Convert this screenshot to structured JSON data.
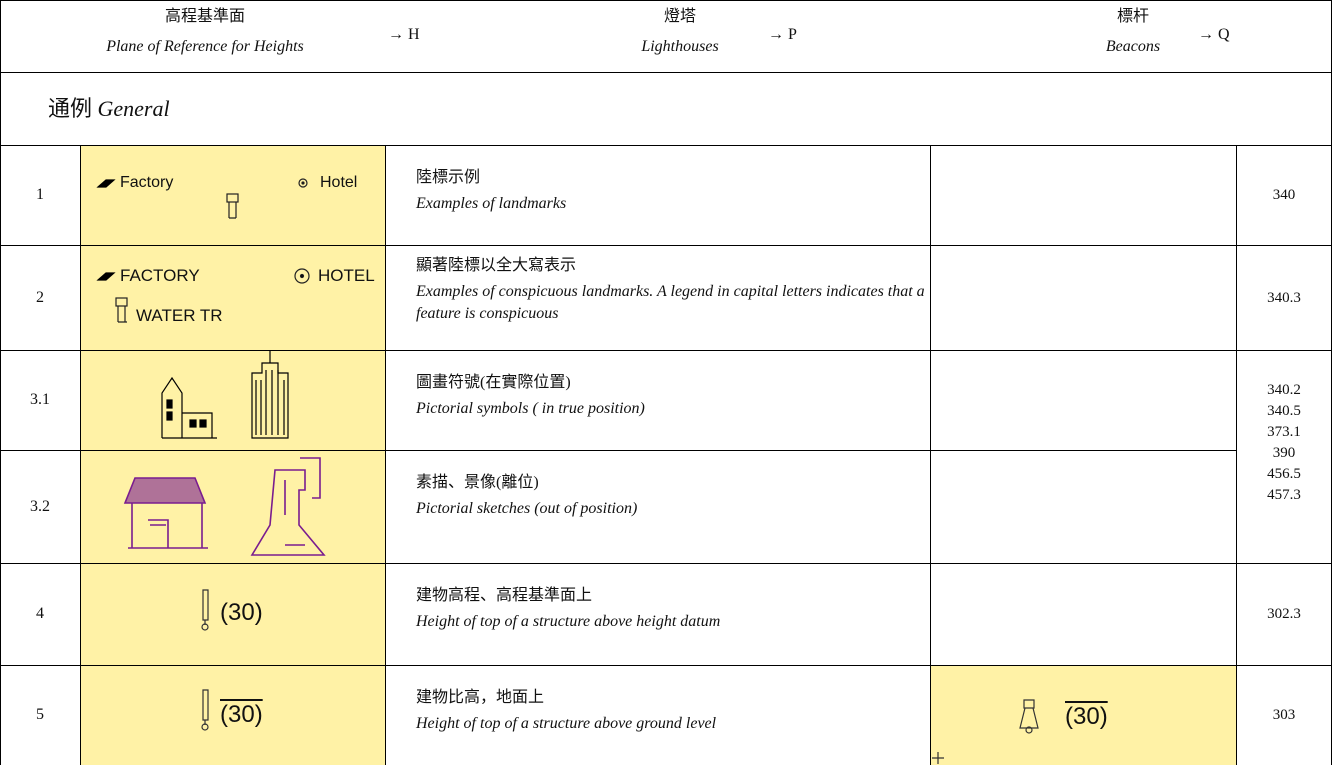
{
  "header": {
    "items": [
      {
        "zh": "高程基準面",
        "en": "Plane of Reference for Heights",
        "ref": "→ H"
      },
      {
        "zh": "燈塔",
        "en": "Lighthouses",
        "ref": "→ P"
      },
      {
        "zh": "標杆",
        "en": "Beacons",
        "ref": "→ Q"
      }
    ]
  },
  "section": {
    "zh": "通例",
    "en": "General"
  },
  "table": {
    "rows": [
      {
        "num": "1",
        "labels": [
          "Factory",
          "Hotel"
        ],
        "zh": "陸標示例",
        "en": "Examples of landmarks",
        "ref": "340"
      },
      {
        "num": "2",
        "labels": [
          "FACTORY",
          "HOTEL",
          "WATER TR"
        ],
        "zh": "顯著陸標以全大寫表示",
        "en": "Examples of conspicuous landmarks. A legend in capital letters indicates that a feature is conspicuous",
        "ref": "340.3"
      },
      {
        "num": "3.1",
        "zh": "圖畫符號(在實際位置)",
        "en": "Pictorial symbols ( in true position)"
      },
      {
        "num": "3.2",
        "zh": "素描、景像(離位)",
        "en": "Pictorial sketches (out of position)"
      },
      {
        "num": "4",
        "labels": [
          "(30)"
        ],
        "zh": "建物高程、高程基準面上",
        "en": "Height of top of a structure above height datum",
        "ref": "302.3"
      },
      {
        "num": "5",
        "labels": [
          "(30)"
        ],
        "zh": "建物比高，地面上",
        "en": "Height of top of a structure above ground level",
        "beacon_label": "(30)",
        "ref": "303"
      }
    ],
    "merged_refs": [
      "340.2",
      "340.5",
      "373.1",
      "390",
      "456.5",
      "457.3"
    ]
  }
}
